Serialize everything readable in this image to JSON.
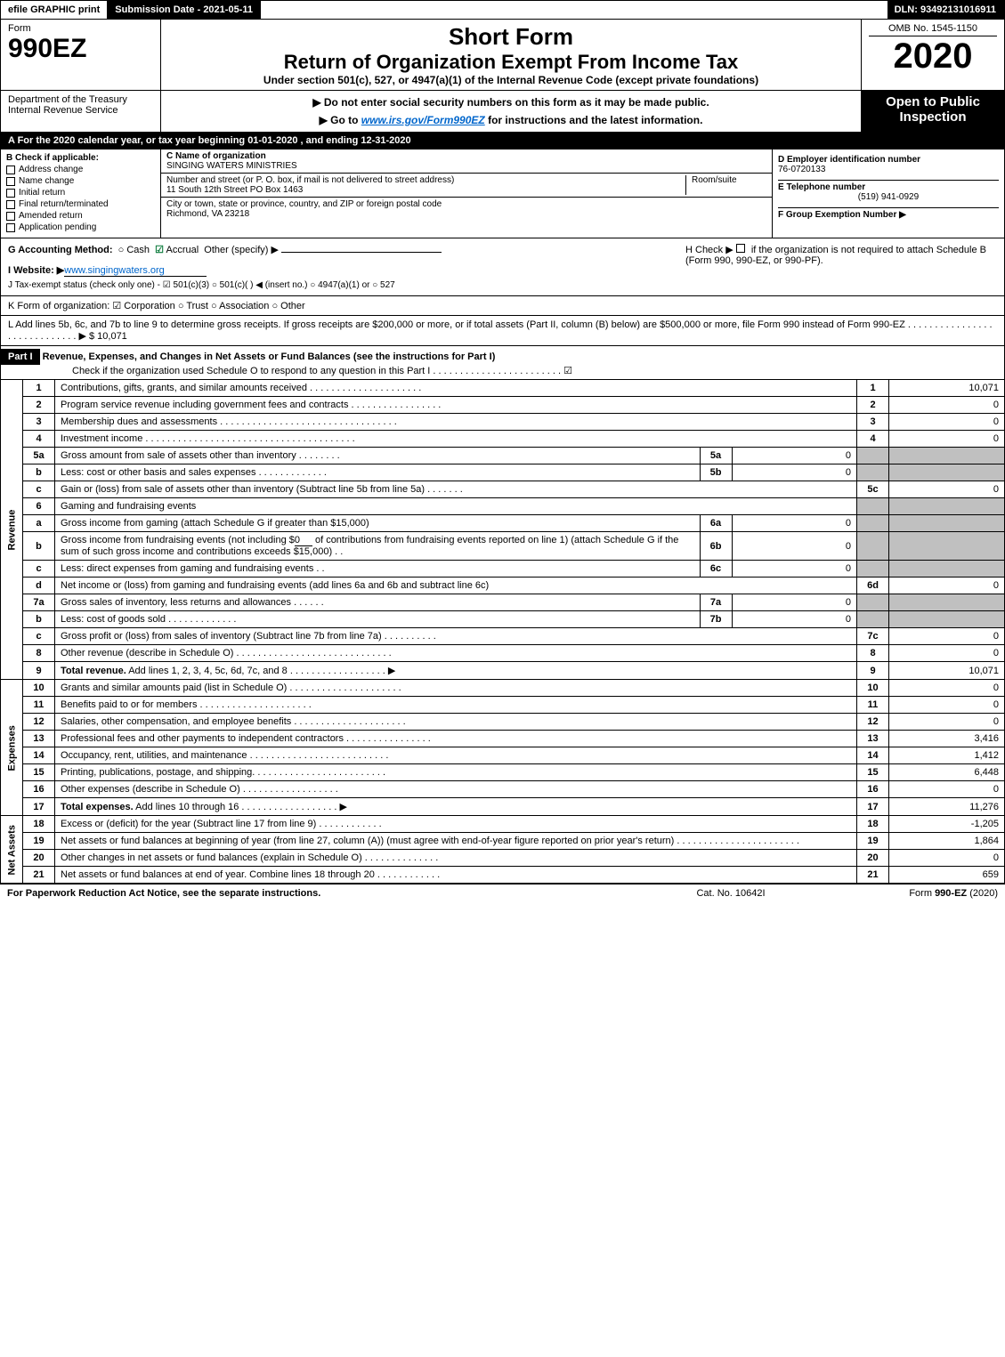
{
  "topbar": {
    "print": "efile GRAPHIC print",
    "submission": "Submission Date - 2021-05-11",
    "dln": "DLN: 93492131016911"
  },
  "header": {
    "form_label": "Form",
    "form_number": "990EZ",
    "short_form": "Short Form",
    "return_title": "Return of Organization Exempt From Income Tax",
    "under_section": "Under section 501(c), 527, or 4947(a)(1) of the Internal Revenue Code (except private foundations)",
    "dept": "Department of the Treasury",
    "irs": "Internal Revenue Service",
    "warn": "▶ Do not enter social security numbers on this form as it may be made public.",
    "goto_pre": "▶ Go to ",
    "goto_link": "www.irs.gov/Form990EZ",
    "goto_post": " for instructions and the latest information.",
    "omb": "OMB No. 1545-1150",
    "year": "2020",
    "open": "Open to Public Inspection"
  },
  "line_a": "A  For the 2020 calendar year, or tax year beginning 01-01-2020 , and ending 12-31-2020",
  "box_b": {
    "title": "B  Check if applicable:",
    "items": [
      "Address change",
      "Name change",
      "Initial return",
      "Final return/terminated",
      "Amended return",
      "Application pending"
    ]
  },
  "org": {
    "c_label": "C Name of organization",
    "name": "SINGING WATERS MINISTRIES",
    "addr_label": "Number and street (or P. O. box, if mail is not delivered to street address)",
    "addr": "11 South 12th Street PO Box 1463",
    "room_label": "Room/suite",
    "city_label": "City or town, state or province, country, and ZIP or foreign postal code",
    "city": "Richmond, VA  23218"
  },
  "right_info": {
    "d_label": "D Employer identification number",
    "ein": "76-0720133",
    "e_label": "E Telephone number",
    "phone": "(519) 941-0929",
    "f_label": "F Group Exemption Number  ▶"
  },
  "line_g": {
    "label": "G Accounting Method:",
    "cash": "Cash",
    "accrual": "Accrual",
    "other": "Other (specify) ▶"
  },
  "line_h": {
    "text": "H  Check ▶",
    "rest": "if the organization is not required to attach Schedule B (Form 990, 990-EZ, or 990-PF)."
  },
  "line_i": {
    "label": "I Website: ▶",
    "value": "www.singingwaters.org"
  },
  "line_j": "J Tax-exempt status (check only one) -  ☑ 501(c)(3)  ○ 501(c)(  ) ◀ (insert no.)  ○ 4947(a)(1) or  ○ 527",
  "line_k": "K Form of organization:  ☑ Corporation  ○ Trust  ○ Association  ○ Other",
  "line_l": {
    "text": "L Add lines 5b, 6c, and 7b to line 9 to determine gross receipts. If gross receipts are $200,000 or more, or if total assets (Part II, column (B) below) are $500,000 or more, file Form 990 instead of Form 990-EZ . . . . . . . . . . . . . . . . . . . . . . . . . . . . .  ▶ $ ",
    "value": "10,071"
  },
  "part1": {
    "label": "Part I",
    "title": "Revenue, Expenses, and Changes in Net Assets or Fund Balances (see the instructions for Part I)",
    "check": "Check if the organization used Schedule O to respond to any question in this Part I . . . . . . . . . . . . . . . . . . . . . . . .  ☑"
  },
  "sections": {
    "revenue": "Revenue",
    "expenses": "Expenses",
    "netassets": "Net Assets"
  },
  "rows": [
    {
      "n": "1",
      "d": "Contributions, gifts, grants, and similar amounts received . . . . . . . . . . . . . . . . . . . . .",
      "ln": "1",
      "v": "10,071"
    },
    {
      "n": "2",
      "d": "Program service revenue including government fees and contracts . . . . . . . . . . . . . . . . .",
      "ln": "2",
      "v": "0"
    },
    {
      "n": "3",
      "d": "Membership dues and assessments . . . . . . . . . . . . . . . . . . . . . . . . . . . . . . . . .",
      "ln": "3",
      "v": "0"
    },
    {
      "n": "4",
      "d": "Investment income . . . . . . . . . . . . . . . . . . . . . . . . . . . . . . . . . . . . . . .",
      "ln": "4",
      "v": "0"
    }
  ],
  "row5a": {
    "n": "5a",
    "d": "Gross amount from sale of assets other than inventory . . . . . . . .",
    "sn": "5a",
    "sv": "0"
  },
  "row5b": {
    "n": "b",
    "d": "Less: cost or other basis and sales expenses . . . . . . . . . . . . .",
    "sn": "5b",
    "sv": "0"
  },
  "row5c": {
    "n": "c",
    "d": "Gain or (loss) from sale of assets other than inventory (Subtract line 5b from line 5a) . . . . . . .",
    "ln": "5c",
    "v": "0"
  },
  "row6": {
    "n": "6",
    "d": "Gaming and fundraising events"
  },
  "row6a": {
    "n": "a",
    "d": "Gross income from gaming (attach Schedule G if greater than $15,000)",
    "sn": "6a",
    "sv": "0"
  },
  "row6b": {
    "n": "b",
    "d1": "Gross income from fundraising events (not including $",
    "amt": "0",
    "d2": "of contributions from fundraising events reported on line 1) (attach Schedule G if the sum of such gross income and contributions exceeds $15,000)   .  .",
    "sn": "6b",
    "sv": "0"
  },
  "row6c": {
    "n": "c",
    "d": "Less: direct expenses from gaming and fundraising events   .  .",
    "sn": "6c",
    "sv": "0"
  },
  "row6d": {
    "n": "d",
    "d": "Net income or (loss) from gaming and fundraising events (add lines 6a and 6b and subtract line 6c)",
    "ln": "6d",
    "v": "0"
  },
  "row7a": {
    "n": "7a",
    "d": "Gross sales of inventory, less returns and allowances . . . . . .",
    "sn": "7a",
    "sv": "0"
  },
  "row7b": {
    "n": "b",
    "d": "Less: cost of goods sold        .   .   .   .   .   .   .   .   .   .   .   .   .",
    "sn": "7b",
    "sv": "0"
  },
  "row7c": {
    "n": "c",
    "d": "Gross profit or (loss) from sales of inventory (Subtract line 7b from line 7a) . . . . . . . . . .",
    "ln": "7c",
    "v": "0"
  },
  "row8": {
    "n": "8",
    "d": "Other revenue (describe in Schedule O) . . . . . . . . . . . . . . . . . . . . . . . . . . . . .",
    "ln": "8",
    "v": "0"
  },
  "row9": {
    "n": "9",
    "d": "Total revenue. Add lines 1, 2, 3, 4, 5c, 6d, 7c, and 8  .  .  . . . . . . . . . . . . . . . .  ▶",
    "ln": "9",
    "v": "10,071",
    "bold": true
  },
  "exp_rows": [
    {
      "n": "10",
      "d": "Grants and similar amounts paid (list in Schedule O) . . . . . . . . . . . . . . . . . . . . .",
      "ln": "10",
      "v": "0"
    },
    {
      "n": "11",
      "d": "Benefits paid to or for members    .   .   .   .   .   .   .   .   .   .   .   .   .   .   .   .   .   .   .   .   .",
      "ln": "11",
      "v": "0"
    },
    {
      "n": "12",
      "d": "Salaries, other compensation, and employee benefits . . . . . . . . . . . . . . . . . . . . .",
      "ln": "12",
      "v": "0"
    },
    {
      "n": "13",
      "d": "Professional fees and other payments to independent contractors . . . . . . . . . . . . . . . .",
      "ln": "13",
      "v": "3,416"
    },
    {
      "n": "14",
      "d": "Occupancy, rent, utilities, and maintenance . . . . . . . . . . . . . . . . . . . . . . . . . .",
      "ln": "14",
      "v": "1,412"
    },
    {
      "n": "15",
      "d": "Printing, publications, postage, and shipping. . . . . . . . . . . . . . . . . . . . . . . . .",
      "ln": "15",
      "v": "6,448"
    },
    {
      "n": "16",
      "d": "Other expenses (describe in Schedule O)    .   .   .   .   .   .   .   .   .   .   .   .   .   .   .   .   .   .",
      "ln": "16",
      "v": "0"
    },
    {
      "n": "17",
      "d": "Total expenses. Add lines 10 through 16     .   .   .   .   .   .   .   .   .   .   .   .   .   .   .   .   .   .   ▶",
      "ln": "17",
      "v": "11,276",
      "bold": true
    }
  ],
  "na_rows": [
    {
      "n": "18",
      "d": "Excess or (deficit) for the year (Subtract line 17 from line 9)      .   .   .   .   .   .   .   .   .   .   .   .",
      "ln": "18",
      "v": "-1,205"
    },
    {
      "n": "19",
      "d": "Net assets or fund balances at beginning of year (from line 27, column (A)) (must agree with end-of-year figure reported on prior year's return) . . . . . . . . . . . . . . . . . . . . . . .",
      "ln": "19",
      "v": "1,864"
    },
    {
      "n": "20",
      "d": "Other changes in net assets or fund balances (explain in Schedule O) . . . . . . . . . . . . . .",
      "ln": "20",
      "v": "0"
    },
    {
      "n": "21",
      "d": "Net assets or fund balances at end of year. Combine lines 18 through 20 . . . . . . . . . . . .",
      "ln": "21",
      "v": "659"
    }
  ],
  "footer": {
    "left": "For Paperwork Reduction Act Notice, see the separate instructions.",
    "center": "Cat. No. 10642I",
    "right_pre": "Form ",
    "right_bold": "990-EZ",
    "right_post": " (2020)"
  }
}
